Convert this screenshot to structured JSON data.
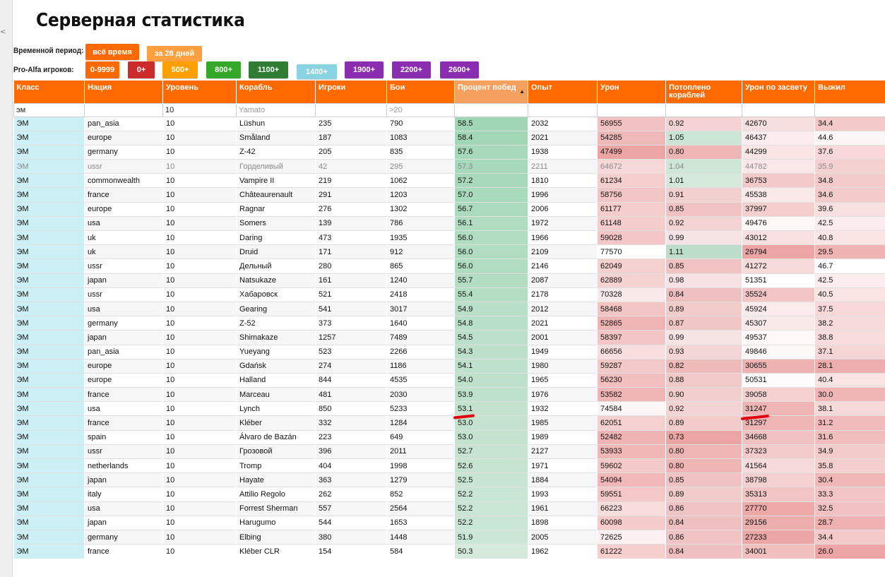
{
  "title": "Серверная статистика",
  "side_marker": "<",
  "period": {
    "label": "Временной период:",
    "options": [
      {
        "label": "всё время",
        "color": "#ff6a00"
      },
      {
        "label": "за 28 дней",
        "color": "#ffa040"
      }
    ]
  },
  "pro": {
    "label": "Pro-Alfa игроков:",
    "options": [
      {
        "label": "0-9999",
        "color": "#ff6a00"
      },
      {
        "label": "0+",
        "color": "#cc2b2b"
      },
      {
        "label": "500+",
        "color": "#ffa000"
      },
      {
        "label": "800+",
        "color": "#35a82a"
      },
      {
        "label": "1100+",
        "color": "#2e7d32"
      },
      {
        "label": "1400+",
        "color": "#8ad3e0"
      },
      {
        "label": "1900+",
        "color": "#8a2db0"
      },
      {
        "label": "2200+",
        "color": "#8a2db0"
      },
      {
        "label": "2600+",
        "color": "#8a2db0"
      }
    ]
  },
  "columns": [
    "Класс",
    "Нация",
    "Уровень",
    "Корабль",
    "Игроки",
    "Бои",
    "Процент побед",
    "Опыт",
    "Урон",
    "Потоплено кораблей",
    "Урон по засвету",
    "Выжил"
  ],
  "filters": [
    {
      "value": "эм",
      "placeholder": ""
    },
    {
      "value": "",
      "placeholder": ""
    },
    {
      "value": "10",
      "placeholder": ""
    },
    {
      "value": "",
      "placeholder": "Yamato"
    },
    {
      "value": "",
      "placeholder": ""
    },
    {
      "value": "",
      "placeholder": ">20"
    },
    {
      "value": "",
      "placeholder": ""
    },
    {
      "value": "",
      "placeholder": ""
    },
    {
      "value": "",
      "placeholder": ""
    },
    {
      "value": "",
      "placeholder": ""
    },
    {
      "value": "",
      "placeholder": ""
    },
    {
      "value": "",
      "placeholder": ""
    }
  ],
  "rows": [
    [
      "ЭМ",
      "pan_asia",
      "10",
      "Lüshun",
      "235",
      "790",
      "58.5",
      "2032",
      "56955",
      "0.92",
      "42670",
      "34.4"
    ],
    [
      "ЭМ",
      "europe",
      "10",
      "Småland",
      "187",
      "1083",
      "58.4",
      "2021",
      "54285",
      "1.05",
      "46437",
      "44.6"
    ],
    [
      "ЭМ",
      "germany",
      "10",
      "Z-42",
      "205",
      "835",
      "57.6",
      "1938",
      "47499",
      "0.80",
      "44299",
      "37.6"
    ],
    [
      "ЭМ",
      "ussr",
      "10",
      "Горделивый",
      "42",
      "295",
      "57.3",
      "2211",
      "64672",
      "1.04",
      "44782",
      "35.9"
    ],
    [
      "ЭМ",
      "commonwealth",
      "10",
      "Vampire II",
      "219",
      "1062",
      "57.2",
      "1810",
      "61234",
      "1.01",
      "36753",
      "34.8"
    ],
    [
      "ЭМ",
      "france",
      "10",
      "Châteaurenault",
      "291",
      "1203",
      "57.0",
      "1996",
      "58756",
      "0.91",
      "45538",
      "34.6"
    ],
    [
      "ЭМ",
      "europe",
      "10",
      "Ragnar",
      "276",
      "1302",
      "56.7",
      "2006",
      "61177",
      "0.85",
      "37997",
      "39.6"
    ],
    [
      "ЭМ",
      "usa",
      "10",
      "Somers",
      "139",
      "786",
      "56.1",
      "1972",
      "61148",
      "0.92",
      "49476",
      "42.5"
    ],
    [
      "ЭМ",
      "uk",
      "10",
      "Daring",
      "473",
      "1935",
      "56.0",
      "1966",
      "59028",
      "0.99",
      "43012",
      "40.8"
    ],
    [
      "ЭМ",
      "uk",
      "10",
      "Druid",
      "171",
      "912",
      "56.0",
      "2109",
      "77570",
      "1.11",
      "26794",
      "29.5"
    ],
    [
      "ЭМ",
      "ussr",
      "10",
      "Дельный",
      "280",
      "865",
      "56.0",
      "2146",
      "62049",
      "0.85",
      "41272",
      "46.7"
    ],
    [
      "ЭМ",
      "japan",
      "10",
      "Natsukaze",
      "161",
      "1240",
      "55.7",
      "2087",
      "62889",
      "0.98",
      "51351",
      "42.5"
    ],
    [
      "ЭМ",
      "ussr",
      "10",
      "Хабаровск",
      "521",
      "2418",
      "55.4",
      "2178",
      "70328",
      "0.84",
      "35524",
      "40.5"
    ],
    [
      "ЭМ",
      "usa",
      "10",
      "Gearing",
      "541",
      "3017",
      "54.9",
      "2012",
      "58468",
      "0.89",
      "45924",
      "37.5"
    ],
    [
      "ЭМ",
      "germany",
      "10",
      "Z-52",
      "373",
      "1640",
      "54.8",
      "2021",
      "52865",
      "0.87",
      "45307",
      "38.2"
    ],
    [
      "ЭМ",
      "japan",
      "10",
      "Shimakaze",
      "1257",
      "7489",
      "54.5",
      "2001",
      "58397",
      "0.99",
      "49537",
      "38.8"
    ],
    [
      "ЭМ",
      "pan_asia",
      "10",
      "Yueyang",
      "523",
      "2266",
      "54.3",
      "1949",
      "66656",
      "0.93",
      "49846",
      "37.1"
    ],
    [
      "ЭМ",
      "europe",
      "10",
      "Gdańsk",
      "274",
      "1186",
      "54.1",
      "1980",
      "59287",
      "0.82",
      "30655",
      "28.1"
    ],
    [
      "ЭМ",
      "europe",
      "10",
      "Halland",
      "844",
      "4535",
      "54.0",
      "1965",
      "56230",
      "0.88",
      "50531",
      "40.4"
    ],
    [
      "ЭМ",
      "france",
      "10",
      "Marceau",
      "481",
      "2030",
      "53.9",
      "1976",
      "53582",
      "0.90",
      "39058",
      "30.0"
    ],
    [
      "ЭМ",
      "usa",
      "10",
      "Lynch",
      "850",
      "5233",
      "53.1",
      "1932",
      "74584",
      "0.92",
      "31247",
      "38.1"
    ],
    [
      "ЭМ",
      "france",
      "10",
      "Kléber",
      "332",
      "1284",
      "53.0",
      "1985",
      "62051",
      "0.89",
      "31297",
      "31.2"
    ],
    [
      "ЭМ",
      "spain",
      "10",
      "Álvaro de Bazán",
      "223",
      "649",
      "53.0",
      "1989",
      "52482",
      "0.73",
      "34668",
      "31.6"
    ],
    [
      "ЭМ",
      "ussr",
      "10",
      "Грозовой",
      "396",
      "2011",
      "52.7",
      "2127",
      "53933",
      "0.80",
      "37323",
      "34.9"
    ],
    [
      "ЭМ",
      "netherlands",
      "10",
      "Tromp",
      "404",
      "1998",
      "52.6",
      "1971",
      "59602",
      "0.80",
      "41564",
      "35.8"
    ],
    [
      "ЭМ",
      "japan",
      "10",
      "Hayate",
      "363",
      "1279",
      "52.5",
      "1884",
      "54094",
      "0.85",
      "38798",
      "30.4"
    ],
    [
      "ЭМ",
      "italy",
      "10",
      "Attilio Regolo",
      "262",
      "852",
      "52.2",
      "1993",
      "59551",
      "0.89",
      "35313",
      "33.3"
    ],
    [
      "ЭМ",
      "usa",
      "10",
      "Forrest Sherman",
      "557",
      "2564",
      "52.2",
      "1961",
      "66223",
      "0.86",
      "27770",
      "32.5"
    ],
    [
      "ЭМ",
      "japan",
      "10",
      "Harugumo",
      "544",
      "1653",
      "52.2",
      "1898",
      "60098",
      "0.84",
      "29156",
      "28.7"
    ],
    [
      "ЭМ",
      "germany",
      "10",
      "Elbing",
      "380",
      "1448",
      "51.9",
      "2005",
      "72625",
      "0.86",
      "27233",
      "34.4"
    ],
    [
      "ЭМ",
      "france",
      "10",
      "Kléber CLR",
      "154",
      "584",
      "50.3",
      "1962",
      "61222",
      "0.84",
      "34001",
      "26.0"
    ]
  ],
  "dim_row": 3,
  "sorted_column": 6
}
